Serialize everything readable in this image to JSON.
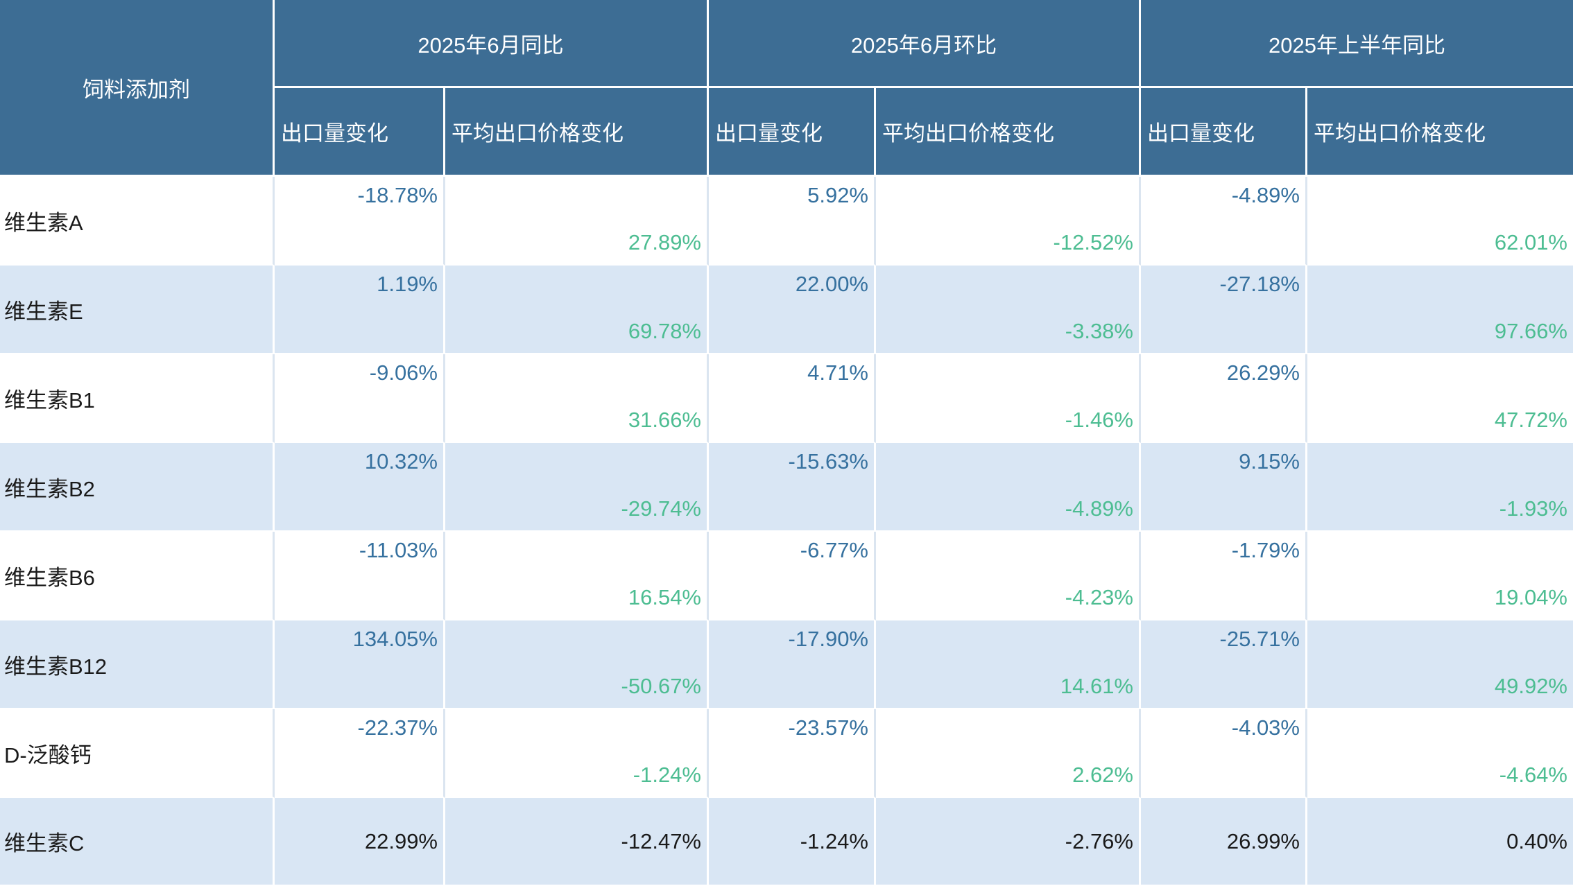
{
  "chart_data": {
    "type": "table",
    "title": "",
    "corner_header": "饲料添加剂",
    "column_groups": [
      "2025年6月同比",
      "2025年6月环比",
      "2025年上半年同比"
    ],
    "sub_headers": [
      "出口量变化",
      "平均出口价格变化",
      "出口量变化",
      "平均出口价格变化",
      "出口量变化",
      "平均出口价格变化"
    ],
    "rows": [
      {
        "name": "维生素A",
        "values": [
          "-18.78%",
          "27.89%",
          "5.92%",
          "-12.52%",
          "-4.89%",
          "62.01%"
        ]
      },
      {
        "name": "维生素E",
        "values": [
          "1.19%",
          "69.78%",
          "22.00%",
          "-3.38%",
          "-27.18%",
          "97.66%"
        ]
      },
      {
        "name": "维生素B1",
        "values": [
          "-9.06%",
          "31.66%",
          "4.71%",
          "-1.46%",
          "26.29%",
          "47.72%"
        ]
      },
      {
        "name": "维生素B2",
        "values": [
          "10.32%",
          "-29.74%",
          "-15.63%",
          "-4.89%",
          "9.15%",
          "-1.93%"
        ]
      },
      {
        "name": "维生素B6",
        "values": [
          "-11.03%",
          "16.54%",
          "-6.77%",
          "-4.23%",
          "-1.79%",
          "19.04%"
        ]
      },
      {
        "name": "维生素B12",
        "values": [
          "134.05%",
          "-50.67%",
          "-17.90%",
          "14.61%",
          "-25.71%",
          "49.92%"
        ]
      },
      {
        "name": "D-泛酸钙",
        "values": [
          "-22.37%",
          "-1.24%",
          "-23.57%",
          "2.62%",
          "-4.03%",
          "-4.64%"
        ]
      },
      {
        "name": "维生素C",
        "values": [
          "22.99%",
          "-12.47%",
          "-1.24%",
          "-2.76%",
          "26.99%",
          "0.40%"
        ]
      }
    ],
    "layout_hints": {
      "volume_value_position": "top-right of cell",
      "price_value_position": "bottom-right of cell",
      "last_row_value_position": "middle-right, plain black text",
      "row_striping": "white / light blue alternating"
    }
  },
  "colors": {
    "header_bg": "#3d6d94",
    "header_text": "#ffffff",
    "alt_row_bg": "#d9e6f4",
    "row_bg": "#ffffff",
    "volume_value_text": "#36719f",
    "price_value_text": "#4dbd92",
    "label_text": "#1a1a1a",
    "grid_line_on_white": "#dbe5f0",
    "grid_line_on_blue": "#ffffff"
  }
}
